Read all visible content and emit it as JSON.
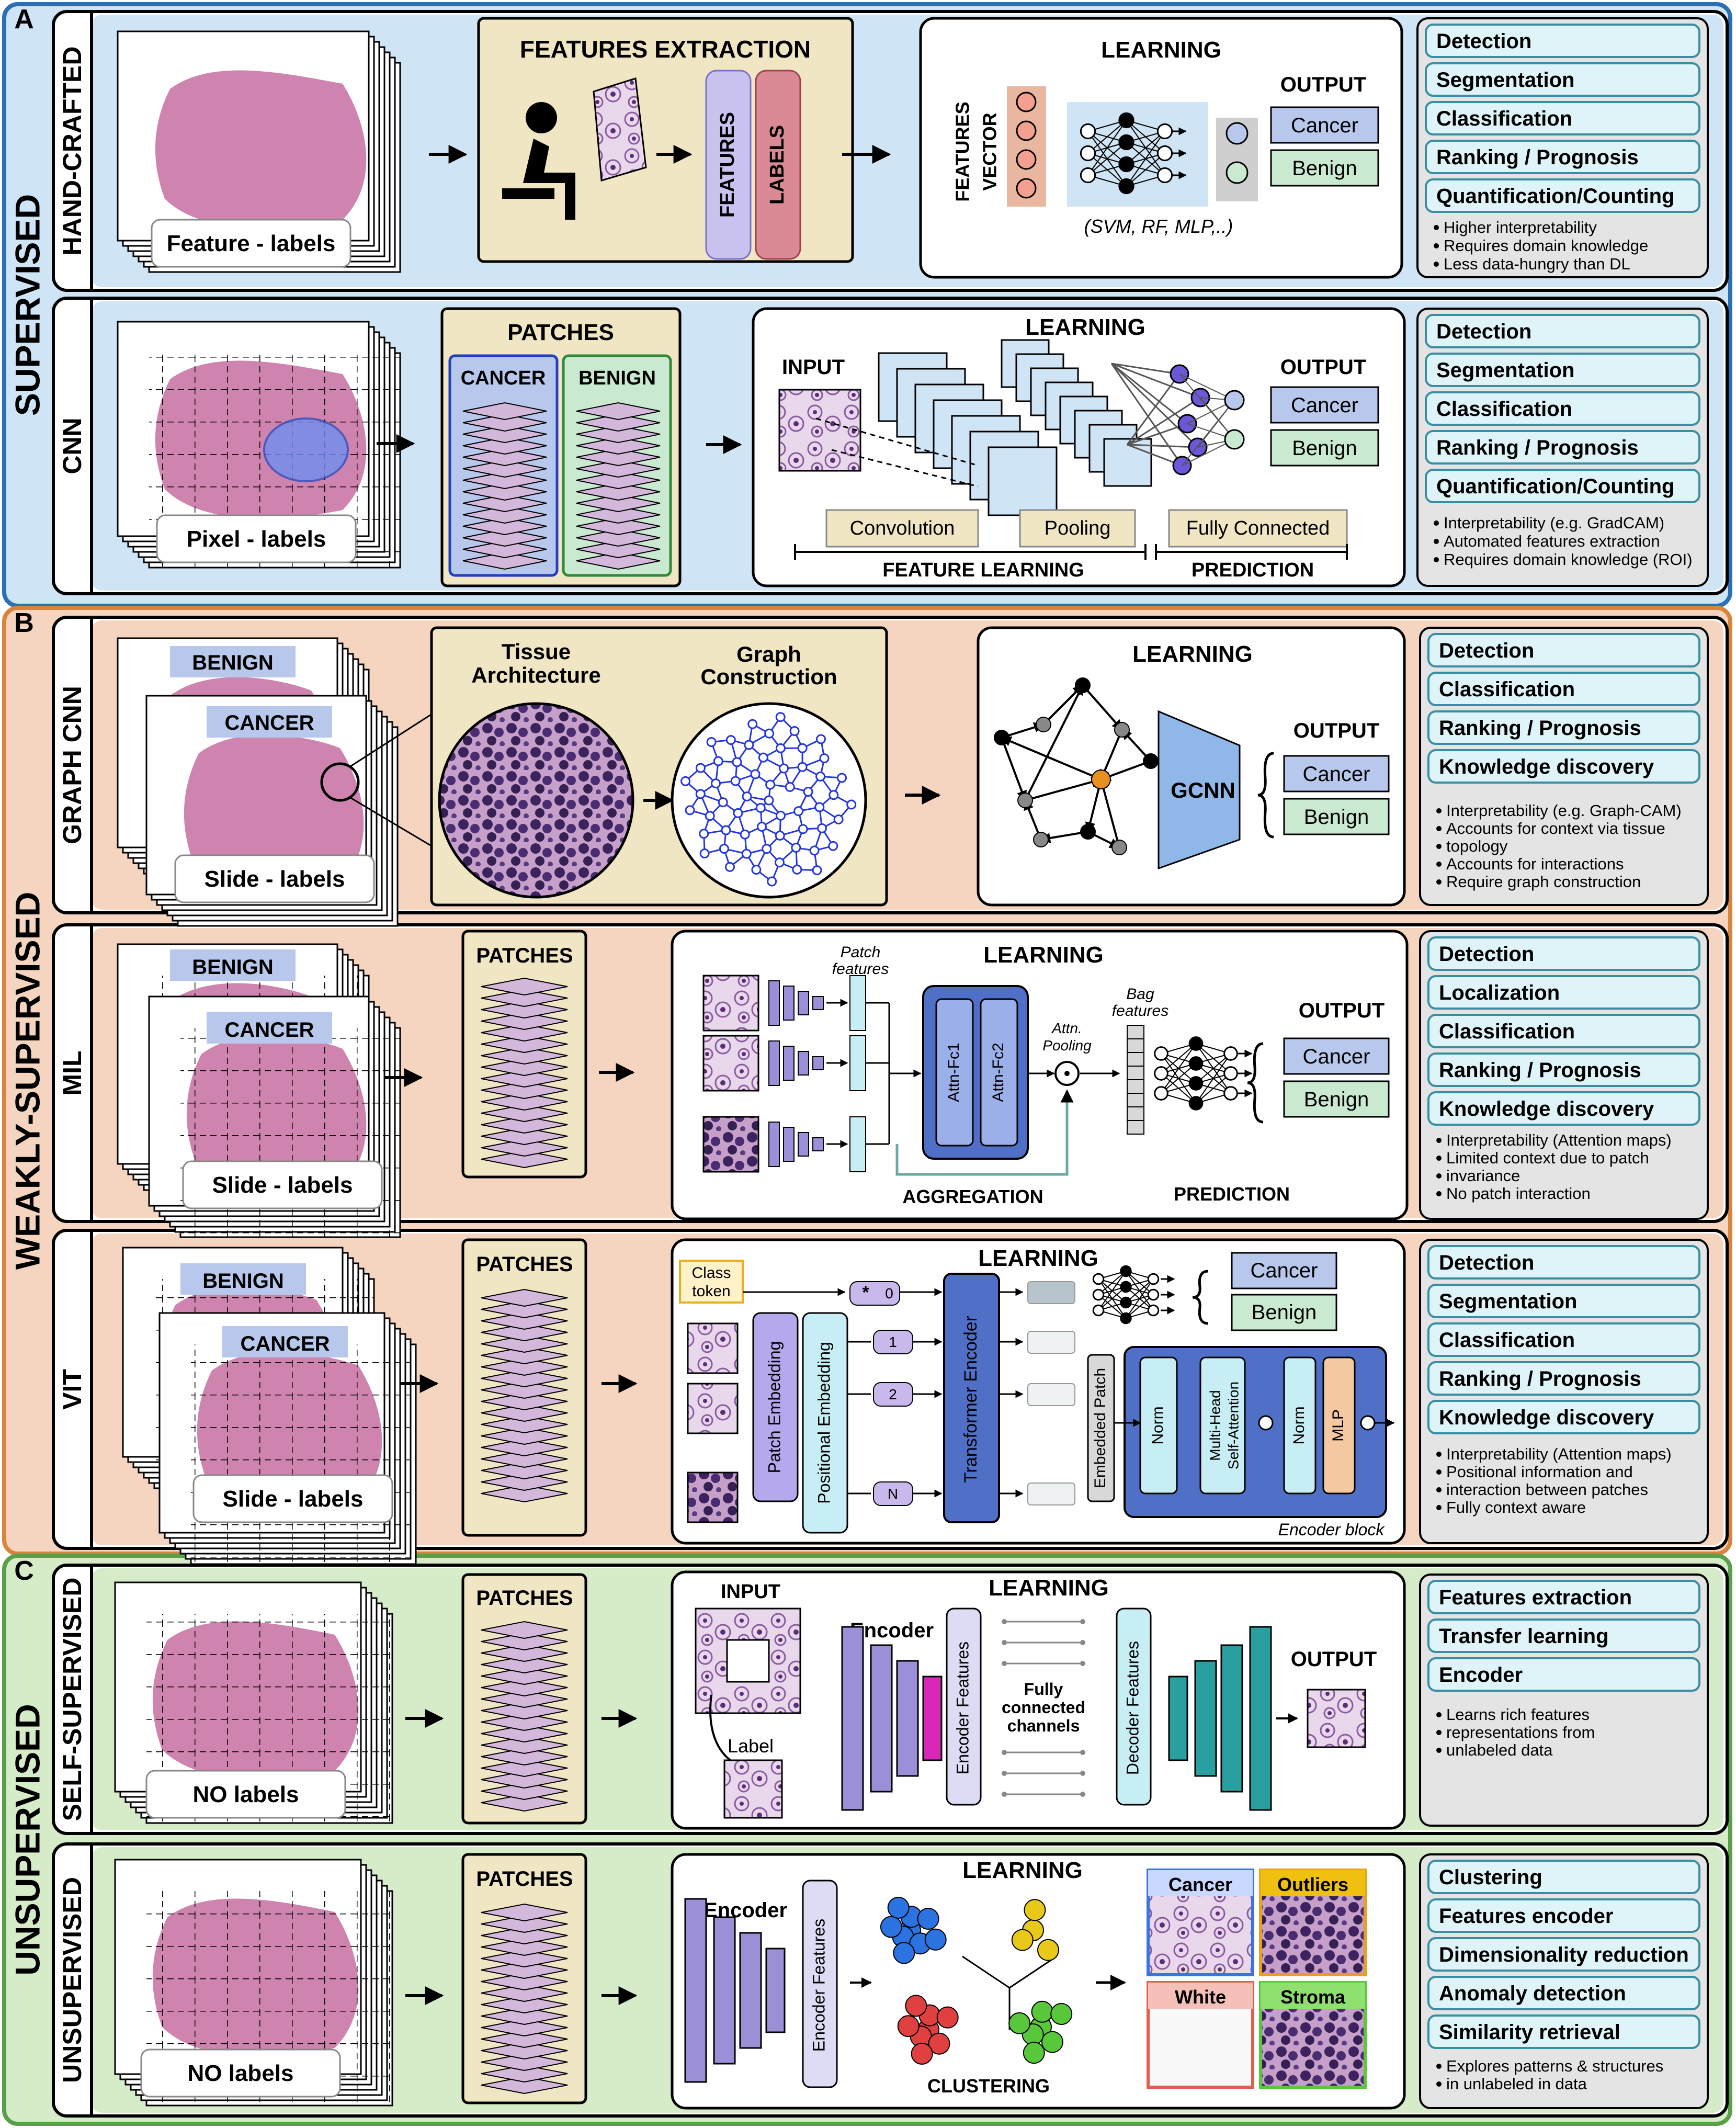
{
  "sections": [
    {
      "letter": "A",
      "title": "SUPERVISED",
      "color": "#cfe4f4",
      "border": "#2b6fb5"
    },
    {
      "letter": "B",
      "title": "WEAKLY-SUPERVISED",
      "color": "#f5d5bf",
      "border": "#d8843c"
    },
    {
      "letter": "C",
      "title": "UNSUPERVISED",
      "color": "#d6ecc9",
      "border": "#5aa04a"
    }
  ],
  "rows": [
    {
      "label": "HAND-CRAFTED",
      "slide_label": "Feature - labels",
      "extraction_title": "FEATURES EXTRACTION",
      "features_text": "FEATURES",
      "labels_text": "LABELS",
      "learning_title": "LEARNING",
      "features_vector": [
        "FEATURES",
        "VECTOR"
      ],
      "models_note": "(SVM, RF, MLP,..)",
      "output_title": "OUTPUT",
      "outputs": [
        "Cancer",
        "Benign"
      ],
      "tasks": [
        "Detection",
        "Segmentation",
        "Classification",
        "Ranking / Prognosis",
        "Quantification/Counting"
      ],
      "notes": [
        "Higher interpretability",
        "Requires domain knowledge",
        "Less data-hungry than DL"
      ]
    },
    {
      "label": "CNN",
      "slide_label": "Pixel - labels",
      "patches_title": "PATCHES",
      "classes": [
        "CANCER",
        "BENIGN"
      ],
      "learning_title": "LEARNING",
      "input_title": "INPUT",
      "output_title": "OUTPUT",
      "outputs": [
        "Cancer",
        "Benign"
      ],
      "layers": [
        "Convolution",
        "Pooling",
        "Fully Connected"
      ],
      "stages": [
        "FEATURE LEARNING",
        "PREDICTION"
      ],
      "tasks": [
        "Detection",
        "Segmentation",
        "Classification",
        "Ranking / Prognosis",
        "Quantification/Counting"
      ],
      "notes": [
        "Interpretability (e.g. GradCAM)",
        "Automated features extraction",
        "Requires domain knowledge (ROI)"
      ]
    },
    {
      "label": "GRAPH CNN",
      "slide_tags": [
        "BENIGN",
        "CANCER"
      ],
      "slide_label": "Slide - labels",
      "tissue_title": [
        "Tissue",
        "Architecture"
      ],
      "graph_title": [
        "Graph",
        "Construction"
      ],
      "learning_title": "LEARNING",
      "model": "GCNN",
      "output_title": "OUTPUT",
      "outputs": [
        "Cancer",
        "Benign"
      ],
      "tasks": [
        "Detection",
        "Classification",
        "Ranking / Prognosis",
        "Knowledge discovery"
      ],
      "notes": [
        "Interpretability (e.g. Graph-CAM)",
        "Accounts for context via tissue",
        "topology",
        "Accounts for interactions",
        "Require graph construction"
      ]
    },
    {
      "label": "MIL",
      "slide_tags": [
        "BENIGN",
        "CANCER"
      ],
      "slide_label": "Slide - labels",
      "patches_title": "PATCHES",
      "learning_title": "LEARNING",
      "patch_features": [
        "Patch",
        "features"
      ],
      "attn_layers": [
        "Attn-Fc1",
        "Attn-Fc2"
      ],
      "attn_pooling": [
        "Attn.",
        "Pooling"
      ],
      "bag_features": [
        "Bag",
        "features"
      ],
      "output_title": "OUTPUT",
      "outputs": [
        "Cancer",
        "Benign"
      ],
      "stages": [
        "AGGREGATION",
        "PREDICTION"
      ],
      "tasks": [
        "Detection",
        "Localization",
        "Classification",
        "Ranking / Prognosis",
        "Knowledge discovery"
      ],
      "notes": [
        "Interpretability (Attention maps)",
        "Limited context due to patch",
        "invariance",
        "No patch interaction"
      ]
    },
    {
      "label": "VIT",
      "slide_tags": [
        "BENIGN",
        "CANCER"
      ],
      "slide_label": "Slide - labels",
      "patches_title": "PATCHES",
      "learning_title": "LEARNING",
      "class_token": [
        "Class",
        "token"
      ],
      "tokens": [
        "0",
        "1",
        "2",
        "N"
      ],
      "star": "*",
      "patch_embedding": "Patch Embedding",
      "positional_embedding": "Positional Embedding",
      "transformer": "Transformer Encoder",
      "embedded_patch": "Embedded Patch",
      "norm": "Norm",
      "mha": [
        "Multi-Head",
        "Self-Attention"
      ],
      "mlp": "MLP",
      "encoder_block": "Encoder block",
      "outputs": [
        "Cancer",
        "Benign"
      ],
      "tasks": [
        "Detection",
        "Segmentation",
        "Classification",
        "Ranking / Prognosis",
        "Knowledge discovery"
      ],
      "notes": [
        "Interpretability (Attention maps)",
        "Positional information and",
        "interaction between patches",
        "Fully context aware"
      ]
    },
    {
      "label": "SELF-SUPERVISED",
      "slide_label": "NO labels",
      "patches_title": "PATCHES",
      "learning_title": "LEARNING",
      "input_title": "INPUT",
      "label_text": "Label",
      "encoder": "Encoder",
      "encoder_features": "Encoder Features",
      "fully_connected": [
        "Fully",
        "connected",
        "channels"
      ],
      "decoder_features": "Decoder Features",
      "output_title": "OUTPUT",
      "tasks": [
        "Features extraction",
        "Transfer learning",
        "Encoder"
      ],
      "notes": [
        "Learns rich features",
        "representations from",
        "unlabeled data"
      ]
    },
    {
      "label": "UNSUPERVISED",
      "slide_label": "NO labels",
      "patches_title": "PATCHES",
      "learning_title": "LEARNING",
      "encoder": "Encoder",
      "encoder_features": "Encoder Features",
      "clustering": "CLUSTERING",
      "clusters": [
        "Cancer",
        "Outliers",
        "White",
        "Stroma"
      ],
      "tasks": [
        "Clustering",
        "Features encoder",
        "Dimensionality reduction",
        "Anomaly detection",
        "Similarity retrieval"
      ],
      "notes": [
        "Explores patterns & structures",
        "in unlabeled in data"
      ]
    }
  ],
  "colors": {
    "task_fill": "#dff4f8",
    "task_stroke": "#3a8ea3",
    "note_fill": "#e4e4e4",
    "cancer_fill": "#b8c8ec",
    "benign_fill": "#c9ead0",
    "tissue": "#c66fa0",
    "purple": "#9b8fd8",
    "teal": "#2a9fa0",
    "beige": "#f1e6c3"
  }
}
